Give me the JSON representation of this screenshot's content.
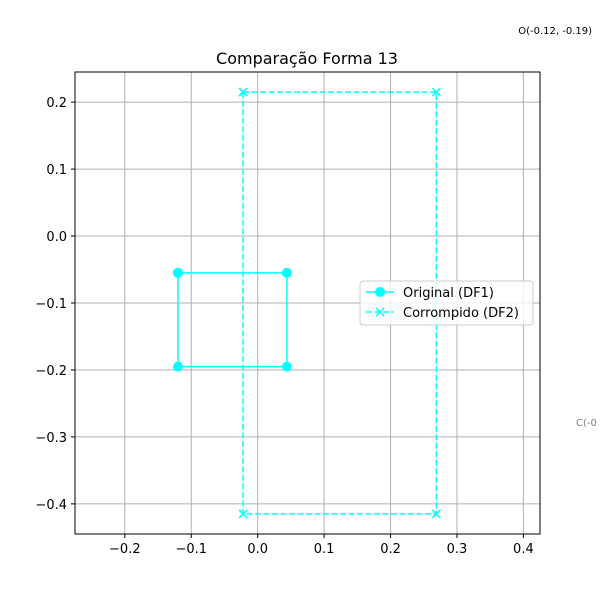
{
  "chart_data": {
    "type": "line",
    "title": "Comparação Forma 13",
    "xlabel": "",
    "ylabel": "",
    "xlim": [
      -0.275,
      0.425
    ],
    "ylim": [
      -0.445,
      0.245
    ],
    "xticks": [
      -0.2,
      -0.1,
      0.0,
      0.1,
      0.2,
      0.3,
      0.4
    ],
    "xtick_labels": [
      "−0.2",
      "−0.1",
      "0.0",
      "0.1",
      "0.2",
      "0.3",
      "0.4"
    ],
    "yticks": [
      0.2,
      0.1,
      0.0,
      -0.1,
      -0.2,
      -0.3,
      -0.4
    ],
    "ytick_labels": [
      "0.2",
      "0.1",
      "0.0",
      "−0.1",
      "−0.2",
      "−0.3",
      "−0.4"
    ],
    "grid": true,
    "legend_position": "center-right",
    "series": [
      {
        "name": "Original (DF1)",
        "color": "#00ffff",
        "line_style": "solid",
        "marker": "circle",
        "x": [
          -0.12,
          0.044,
          0.044,
          -0.12,
          -0.12
        ],
        "y": [
          -0.055,
          -0.055,
          -0.195,
          -0.195,
          -0.055
        ]
      },
      {
        "name": "Corrompido (DF2)",
        "color": "#00ffff",
        "line_style": "dashed",
        "marker": "x",
        "x": [
          -0.022,
          0.269,
          0.269,
          -0.022,
          -0.022
        ],
        "y": [
          0.215,
          0.215,
          -0.415,
          -0.415,
          0.215
        ]
      }
    ],
    "annotations": [
      {
        "text": "O(-0.12, -0.19)",
        "color": "#000000"
      },
      {
        "text": "C(-0",
        "color": "#808080"
      }
    ]
  }
}
